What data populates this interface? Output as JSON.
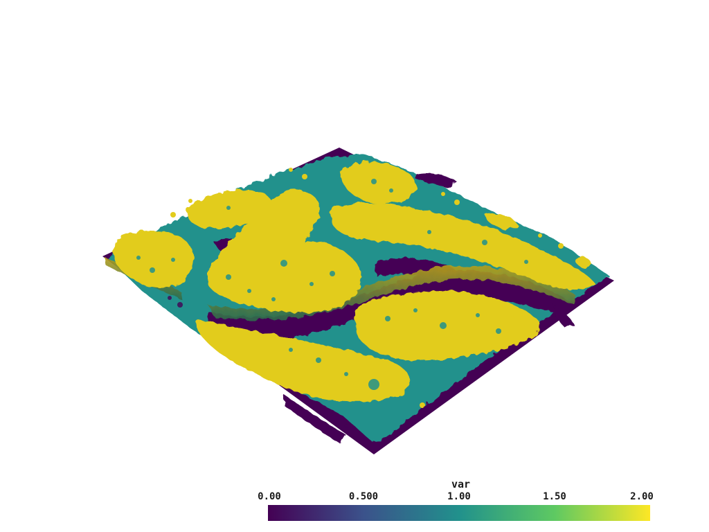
{
  "colorbar": {
    "title": "var",
    "range": [
      0,
      2
    ],
    "ticks": [
      {
        "value": 0.0,
        "label": "0.00"
      },
      {
        "value": 0.5,
        "label": "0.500"
      },
      {
        "value": 1.0,
        "label": "1.00"
      },
      {
        "value": 1.5,
        "label": "1.50"
      },
      {
        "value": 2.0,
        "label": "2.00"
      }
    ],
    "colormap": "viridis",
    "stops": [
      "#440154",
      "#3b528b",
      "#21918c",
      "#5ec962",
      "#fde725"
    ]
  },
  "surface": {
    "category_colors": {
      "low": "#440154",
      "mid": "#21918c",
      "high": "#e2cc1c"
    }
  }
}
